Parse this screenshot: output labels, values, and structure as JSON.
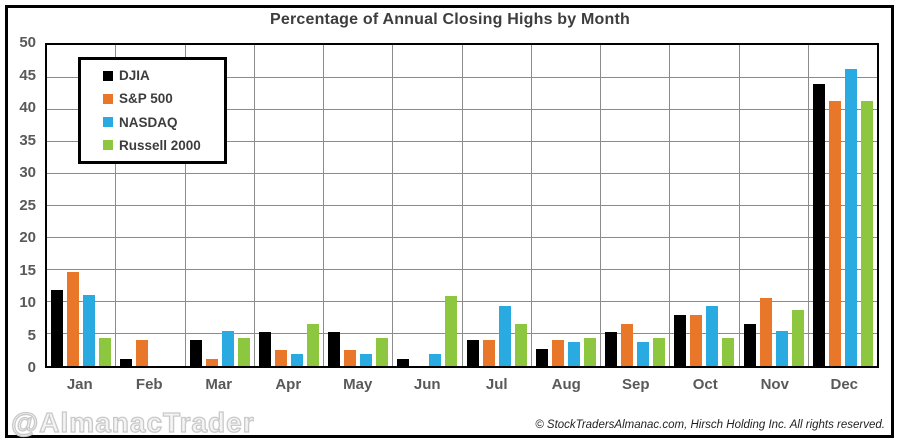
{
  "title": "Percentage of Annual Closing Highs by Month",
  "watermark": "@AlmanacTrader",
  "copyright": "© StockTradersAlmanac.com, Hirsch Holding Inc. All rights reserved.",
  "colors": {
    "djia": "#000000",
    "sp500": "#E87729",
    "nasdaq": "#29ABE2",
    "russell2000": "#8DC63F",
    "gridline": "#8c8c8c",
    "axis_text": "#595959",
    "title_text": "#3d3d3d",
    "frame": "#000000"
  },
  "chart_data": {
    "type": "bar",
    "title": "Percentage of Annual Closing Highs by Month",
    "categories": [
      "Jan",
      "Feb",
      "Mar",
      "Apr",
      "May",
      "Jun",
      "Jul",
      "Aug",
      "Sep",
      "Oct",
      "Nov",
      "Dec"
    ],
    "series": [
      {
        "name": "DJIA",
        "color": "#000000",
        "values": [
          11.9,
          1.1,
          4.0,
          5.3,
          5.3,
          1.1,
          4.0,
          2.6,
          5.3,
          7.9,
          6.6,
          44.0
        ]
      },
      {
        "name": "S&P 500",
        "color": "#E87729",
        "values": [
          14.6,
          4.0,
          1.1,
          2.5,
          2.5,
          0.0,
          4.0,
          4.0,
          6.6,
          8.0,
          10.6,
          41.3
        ]
      },
      {
        "name": "NASDAQ",
        "color": "#29ABE2",
        "values": [
          11.1,
          0.0,
          5.5,
          1.8,
          1.8,
          1.8,
          9.3,
          3.7,
          3.7,
          9.3,
          5.5,
          46.3
        ]
      },
      {
        "name": "Russell 2000",
        "color": "#8DC63F",
        "values": [
          4.3,
          0.0,
          4.3,
          6.5,
          4.3,
          10.9,
          6.5,
          4.3,
          4.3,
          4.3,
          8.7,
          41.3
        ]
      }
    ],
    "xlabel": "",
    "ylabel": "",
    "ylim": [
      0,
      50
    ],
    "yticks": [
      0,
      5,
      10,
      15,
      20,
      25,
      30,
      35,
      40,
      45,
      50
    ],
    "grid": "horizontal gridlines every 5, vertical month separators",
    "legend_position": "top-left-inside"
  }
}
